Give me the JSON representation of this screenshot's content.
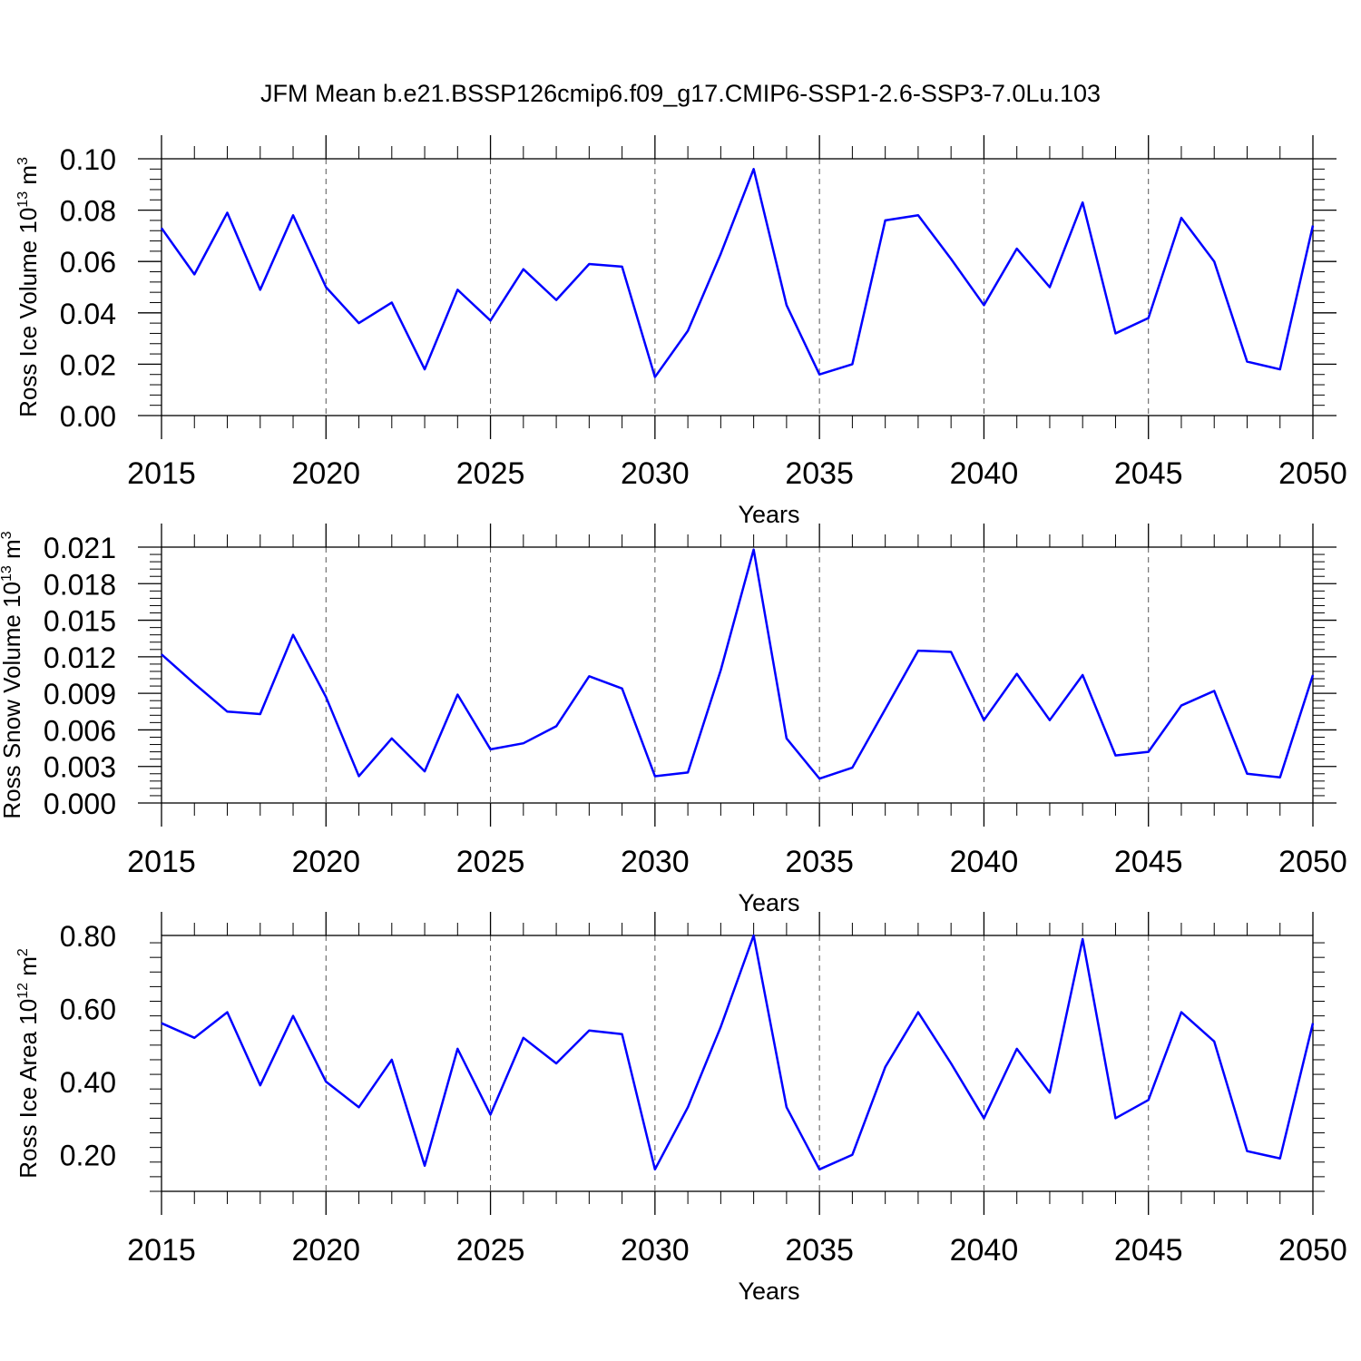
{
  "figure_title": "JFM Mean b.e21.BSSP126cmip6.f09_g17.CMIP6-SSP1-2.6-SSP3-7.0Lu.103",
  "colors": {
    "line": "#0000ff",
    "grid": "#555555",
    "axes": "#000000"
  },
  "chart_data": [
    {
      "type": "line",
      "ylabel": "Ross Ice Volume 10",
      "ylabel_exp": "13",
      "ylabel_unit": " m",
      "ylabel_unit_exp": "3",
      "xlabel": "Years",
      "xlim": [
        2015,
        2050
      ],
      "ylim": [
        0.0,
        0.1
      ],
      "yticks": [
        0.0,
        0.02,
        0.04,
        0.06,
        0.08,
        0.1
      ],
      "ytick_labels": [
        "0.00",
        "0.02",
        "0.04",
        "0.06",
        "0.08",
        "0.10"
      ],
      "xticks": [
        2015,
        2020,
        2025,
        2030,
        2035,
        2040,
        2045,
        2050
      ],
      "xtick_labels": [
        "2015",
        "2020",
        "2025",
        "2030",
        "2035",
        "2040",
        "2045",
        "2050"
      ],
      "x": [
        2015,
        2016,
        2017,
        2018,
        2019,
        2020,
        2021,
        2022,
        2023,
        2024,
        2025,
        2026,
        2027,
        2028,
        2029,
        2030,
        2031,
        2032,
        2033,
        2034,
        2035,
        2036,
        2037,
        2038,
        2039,
        2040,
        2041,
        2042,
        2043,
        2044,
        2045,
        2046,
        2047,
        2048,
        2049,
        2050
      ],
      "values": [
        0.073,
        0.055,
        0.079,
        0.049,
        0.078,
        0.05,
        0.036,
        0.044,
        0.018,
        0.049,
        0.037,
        0.057,
        0.045,
        0.059,
        0.058,
        0.015,
        0.033,
        0.063,
        0.096,
        0.043,
        0.016,
        0.02,
        0.076,
        0.078,
        0.061,
        0.043,
        0.065,
        0.05,
        0.083,
        0.032,
        0.038,
        0.077,
        0.06,
        0.021,
        0.018,
        0.074
      ]
    },
    {
      "type": "line",
      "ylabel": "Ross Snow Volume 10",
      "ylabel_exp": "13",
      "ylabel_unit": " m",
      "ylabel_unit_exp": "3",
      "xlabel": "Years",
      "xlim": [
        2015,
        2050
      ],
      "ylim": [
        0.0,
        0.021
      ],
      "yticks": [
        0.0,
        0.003,
        0.006,
        0.009,
        0.012,
        0.015,
        0.018,
        0.021
      ],
      "ytick_labels": [
        "0.000",
        "0.003",
        "0.006",
        "0.009",
        "0.012",
        "0.015",
        "0.018",
        "0.021"
      ],
      "xticks": [
        2015,
        2020,
        2025,
        2030,
        2035,
        2040,
        2045,
        2050
      ],
      "xtick_labels": [
        "2015",
        "2020",
        "2025",
        "2030",
        "2035",
        "2040",
        "2045",
        "2050"
      ],
      "x": [
        2015,
        2016,
        2017,
        2018,
        2019,
        2020,
        2021,
        2022,
        2023,
        2024,
        2025,
        2026,
        2027,
        2028,
        2029,
        2030,
        2031,
        2032,
        2033,
        2034,
        2035,
        2036,
        2037,
        2038,
        2039,
        2040,
        2041,
        2042,
        2043,
        2044,
        2045,
        2046,
        2047,
        2048,
        2049,
        2050
      ],
      "values": [
        0.0122,
        0.0098,
        0.0075,
        0.0073,
        0.0138,
        0.0087,
        0.0022,
        0.0053,
        0.0026,
        0.0089,
        0.0044,
        0.0049,
        0.0063,
        0.0104,
        0.0094,
        0.0022,
        0.0025,
        0.0109,
        0.0208,
        0.0053,
        0.002,
        0.0029,
        0.0077,
        0.0125,
        0.0124,
        0.0068,
        0.0106,
        0.0068,
        0.0105,
        0.0039,
        0.0042,
        0.008,
        0.0092,
        0.0024,
        0.0021,
        0.0105
      ]
    },
    {
      "type": "line",
      "ylabel": "Ross Ice Area 10",
      "ylabel_exp": "12",
      "ylabel_unit": " m",
      "ylabel_unit_exp": "2",
      "xlabel": "Years",
      "xlim": [
        2015,
        2050
      ],
      "ylim": [
        0.1,
        0.8
      ],
      "yticks": [
        0.2,
        0.4,
        0.6,
        0.8
      ],
      "ytick_labels": [
        "0.20",
        "0.40",
        "0.60",
        "0.80"
      ],
      "xticks": [
        2015,
        2020,
        2025,
        2030,
        2035,
        2040,
        2045,
        2050
      ],
      "xtick_labels": [
        "2015",
        "2020",
        "2025",
        "2030",
        "2035",
        "2040",
        "2045",
        "2050"
      ],
      "x": [
        2015,
        2016,
        2017,
        2018,
        2019,
        2020,
        2021,
        2022,
        2023,
        2024,
        2025,
        2026,
        2027,
        2028,
        2029,
        2030,
        2031,
        2032,
        2033,
        2034,
        2035,
        2036,
        2037,
        2038,
        2039,
        2040,
        2041,
        2042,
        2043,
        2044,
        2045,
        2046,
        2047,
        2048,
        2049,
        2050
      ],
      "values": [
        0.56,
        0.52,
        0.59,
        0.39,
        0.58,
        0.4,
        0.33,
        0.46,
        0.17,
        0.49,
        0.31,
        0.52,
        0.45,
        0.54,
        0.53,
        0.16,
        0.33,
        0.55,
        0.8,
        0.33,
        0.16,
        0.2,
        0.44,
        0.59,
        0.45,
        0.3,
        0.49,
        0.37,
        0.79,
        0.3,
        0.35,
        0.59,
        0.51,
        0.21,
        0.19,
        0.56
      ]
    }
  ]
}
